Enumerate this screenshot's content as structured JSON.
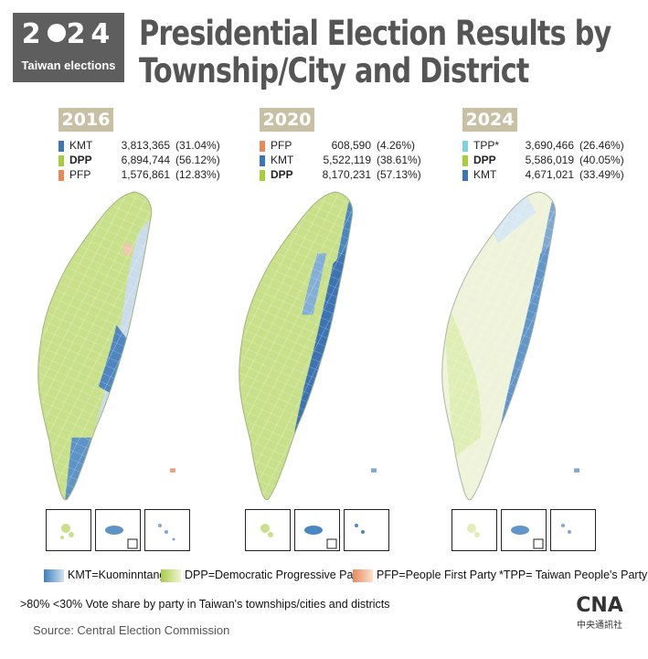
{
  "logo": {
    "year_left": "2",
    "year_right": "24",
    "subtitle": "Taiwan elections"
  },
  "title_line1": "Presidential Election Results by",
  "title_line2": "Township/City and District",
  "panels": [
    {
      "year": "2016",
      "legend": [
        {
          "party": "KMT",
          "votes": "3,813,365",
          "pct": "(31.04%)",
          "color": "#3b78b3"
        },
        {
          "party": "DPP",
          "votes": "6,894,744",
          "pct": "(56.12%)",
          "color": "#a8cc3a"
        },
        {
          "party": "PFP",
          "votes": "1,576,861",
          "pct": "(12.83%)",
          "color": "#e8895a"
        }
      ]
    },
    {
      "year": "2020",
      "legend": [
        {
          "party": "PFP",
          "votes": "608,590",
          "pct": "(4.26%)",
          "color": "#e8895a"
        },
        {
          "party": "KMT",
          "votes": "5,522,119",
          "pct": "(38.61%)",
          "color": "#3b78b3"
        },
        {
          "party": "DPP",
          "votes": "8,170,231",
          "pct": "(57.13%)",
          "color": "#a8cc3a"
        }
      ]
    },
    {
      "year": "2024",
      "legend": [
        {
          "party": "TPP*",
          "votes": "3,690,466",
          "pct": "(26.46%)",
          "color": "#7fd3e0"
        },
        {
          "party": "DPP",
          "votes": "5,586,019",
          "pct": "(40.05%)",
          "color": "#a8cc3a"
        },
        {
          "party": "KMT",
          "votes": "4,671,021",
          "pct": "(33.49%)",
          "color": "#3b78b3"
        }
      ]
    }
  ],
  "map_legend": [
    {
      "label": "KMT=Kuominntang",
      "color_dark": "#3f7fbf",
      "color_light": "#cfe3f2"
    },
    {
      "label": "DPP=Democratic Progressive Party",
      "color_dark": "#a9cc4a",
      "color_light": "#eef5cf"
    },
    {
      "label": "PFP=People First Party",
      "color_dark": "#e8895a",
      "color_light": "#fbe1cf"
    },
    {
      "label": "*TPP= Taiwan People's Party"
    }
  ],
  "scale_high": ">80%",
  "scale_low": "<30%",
  "scale_note": "Vote share by party in Taiwan's townships/cities and districts",
  "source": "Source: Central Election Commission",
  "cna": {
    "mark": "CNA",
    "chinese": "中央通訊社"
  }
}
